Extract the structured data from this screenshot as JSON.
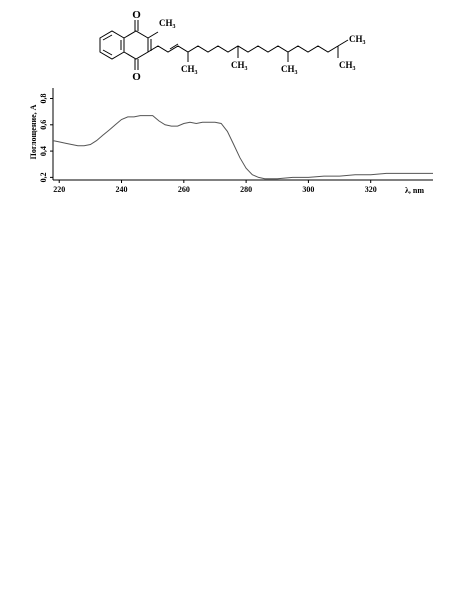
{
  "structure": {
    "atom_O": "O",
    "methyl": "CH",
    "methyl_sub": "3"
  },
  "chart_data": {
    "type": "line",
    "title": "",
    "xlabel": "λ, nm",
    "ylabel": "Поглощение, A",
    "xlim": [
      218,
      340
    ],
    "ylim": [
      0.18,
      0.88
    ],
    "x_ticks": [
      220,
      240,
      260,
      280,
      300,
      320
    ],
    "y_ticks": [
      0.2,
      0.4,
      0.6,
      0.8
    ],
    "y_tick_labels": [
      "0,2",
      "0,4",
      "0,6",
      "0,8"
    ],
    "grid": false,
    "legend": "none",
    "series": [
      {
        "x": [
          218,
          220,
          222,
          224,
          226,
          228,
          230,
          232,
          234,
          236,
          238,
          240,
          242,
          244,
          246,
          248,
          250,
          252,
          254,
          256,
          258,
          260,
          262,
          264,
          266,
          268,
          270,
          272,
          274,
          276,
          278,
          280,
          282,
          284,
          286,
          288,
          290,
          295,
          300,
          305,
          310,
          315,
          320,
          325,
          330,
          335,
          340
        ],
        "values": [
          0.48,
          0.47,
          0.46,
          0.45,
          0.44,
          0.44,
          0.45,
          0.48,
          0.52,
          0.56,
          0.6,
          0.64,
          0.66,
          0.66,
          0.67,
          0.67,
          0.67,
          0.63,
          0.6,
          0.59,
          0.59,
          0.61,
          0.62,
          0.61,
          0.62,
          0.62,
          0.62,
          0.61,
          0.55,
          0.45,
          0.35,
          0.27,
          0.22,
          0.2,
          0.19,
          0.19,
          0.19,
          0.2,
          0.2,
          0.21,
          0.21,
          0.22,
          0.22,
          0.23,
          0.23,
          0.23,
          0.23
        ]
      }
    ]
  }
}
